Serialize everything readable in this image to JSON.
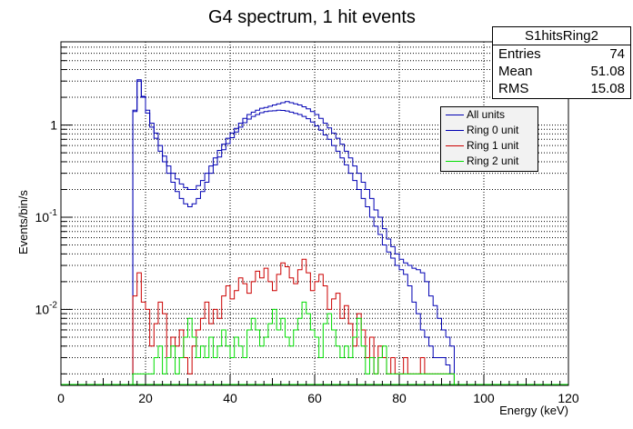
{
  "colors": {
    "all_units": "#0000b3",
    "ring0": "#0000b3",
    "ring1": "#cc0000",
    "ring2": "#00dd00"
  },
  "stats": {
    "title": "S1hitsRing2",
    "rows": [
      {
        "label": "Entries",
        "value": "74"
      },
      {
        "label": "Mean",
        "value": "51.08"
      },
      {
        "label": "RMS",
        "value": "15.08"
      }
    ]
  },
  "legend": [
    {
      "label": "All units",
      "color": "#0000b3"
    },
    {
      "label": "Ring 0 unit",
      "color": "#0000b3"
    },
    {
      "label": "Ring 1 unit",
      "color": "#cc0000"
    },
    {
      "label": "Ring 2 unit",
      "color": "#00dd00"
    }
  ],
  "chart_data": {
    "type": "histogram",
    "title": "G4 spectrum, 1 hit events",
    "xlabel": "Energy (keV)",
    "ylabel": "Events/bin/s",
    "xlim": [
      0,
      120
    ],
    "ylim_log": [
      0.0015,
      8
    ],
    "yscale": "log",
    "grid": true,
    "x_ticks": [
      0,
      20,
      40,
      60,
      80,
      100,
      120
    ],
    "y_ticks": [
      {
        "value": 0.01,
        "base": "10",
        "exp": "-2"
      },
      {
        "value": 0.1,
        "base": "10",
        "exp": "-1"
      },
      {
        "value": 1,
        "base": "1",
        "exp": ""
      }
    ],
    "bin_width": 1,
    "bin_start": 17,
    "series": [
      {
        "name": "All units",
        "values": [
          1.45,
          3.1,
          2.05,
          1.45,
          1.05,
          0.82,
          0.6,
          0.46,
          0.36,
          0.3,
          0.26,
          0.23,
          0.21,
          0.2,
          0.2,
          0.22,
          0.25,
          0.3,
          0.36,
          0.44,
          0.53,
          0.62,
          0.72,
          0.82,
          0.92,
          1.05,
          1.18,
          1.3,
          1.38,
          1.45,
          1.52,
          1.55,
          1.6,
          1.65,
          1.7,
          1.75,
          1.8,
          1.75,
          1.7,
          1.65,
          1.58,
          1.5,
          1.4,
          1.3,
          1.18,
          1.05,
          0.93,
          0.82,
          0.72,
          0.62,
          0.52,
          0.44,
          0.36,
          0.3,
          0.24,
          0.2,
          0.16,
          0.12,
          0.1,
          0.075,
          0.058,
          0.048,
          0.04,
          0.035,
          0.032,
          0.03,
          0.028,
          0.027,
          0.025,
          0.02,
          0.014,
          0.011,
          0.008,
          0.006,
          0.005,
          0.004
        ]
      },
      {
        "name": "Ring 0 unit",
        "values": [
          1.4,
          3.0,
          2.0,
          1.35,
          0.95,
          0.72,
          0.52,
          0.4,
          0.3,
          0.24,
          0.19,
          0.16,
          0.14,
          0.13,
          0.14,
          0.16,
          0.19,
          0.24,
          0.3,
          0.37,
          0.45,
          0.54,
          0.63,
          0.73,
          0.84,
          0.95,
          1.06,
          1.16,
          1.24,
          1.3,
          1.36,
          1.4,
          1.42,
          1.43,
          1.45,
          1.44,
          1.42,
          1.38,
          1.34,
          1.3,
          1.24,
          1.17,
          1.08,
          0.98,
          0.88,
          0.78,
          0.7,
          0.6,
          0.52,
          0.44,
          0.37,
          0.3,
          0.25,
          0.2,
          0.16,
          0.13,
          0.1,
          0.08,
          0.065,
          0.05,
          0.042,
          0.036,
          0.03,
          0.027,
          0.024,
          0.018,
          0.012,
          0.009,
          0.006,
          0.005,
          0.004,
          0.003,
          0.003,
          0.003,
          0.0025,
          0.002
        ]
      },
      {
        "name": "Ring 1 unit",
        "values": [
          0.014,
          0.025,
          0.012,
          0.01,
          0.004,
          0.007,
          0.012,
          0.009,
          0.003,
          0.005,
          0.004,
          0.006,
          0.003,
          0.002,
          0.004,
          0.006,
          0.008,
          0.012,
          0.007,
          0.01,
          0.008,
          0.014,
          0.018,
          0.013,
          0.016,
          0.022,
          0.019,
          0.015,
          0.02,
          0.026,
          0.022,
          0.028,
          0.02,
          0.016,
          0.024,
          0.032,
          0.029,
          0.022,
          0.019,
          0.027,
          0.035,
          0.025,
          0.016,
          0.02,
          0.024,
          0.018,
          0.01,
          0.013,
          0.015,
          0.008,
          0.011,
          0.007,
          0.004,
          0.009,
          0.006,
          0.003,
          0.005,
          0.002,
          0.004,
          0.003,
          0.002,
          0.003,
          0.002,
          0.002,
          0.003,
          0.002,
          0.002,
          0.002,
          0.003,
          0.002,
          0.002,
          0.002,
          0.002,
          0.002,
          0.002,
          0.002
        ]
      },
      {
        "name": "Ring 2 unit",
        "values": [
          0.002,
          0.002,
          0.002,
          0.002,
          0.002,
          0.003,
          0.004,
          0.002,
          0.003,
          0.004,
          0.002,
          0.003,
          0.005,
          0.008,
          0.005,
          0.003,
          0.004,
          0.003,
          0.005,
          0.003,
          0.004,
          0.006,
          0.004,
          0.003,
          0.005,
          0.004,
          0.003,
          0.006,
          0.008,
          0.006,
          0.004,
          0.005,
          0.007,
          0.01,
          0.006,
          0.008,
          0.005,
          0.004,
          0.006,
          0.008,
          0.012,
          0.009,
          0.006,
          0.005,
          0.003,
          0.007,
          0.009,
          0.006,
          0.004,
          0.003,
          0.004,
          0.003,
          0.005,
          0.008,
          0.004,
          0.002,
          0.003,
          0.002,
          0.003,
          0.004,
          0.002,
          0.002,
          0.002,
          0.002,
          0.002,
          0.002,
          0.002,
          0.002,
          0.002,
          0.002,
          0.002,
          0.002,
          0.002,
          0.002,
          0.002,
          0.002
        ]
      }
    ]
  }
}
